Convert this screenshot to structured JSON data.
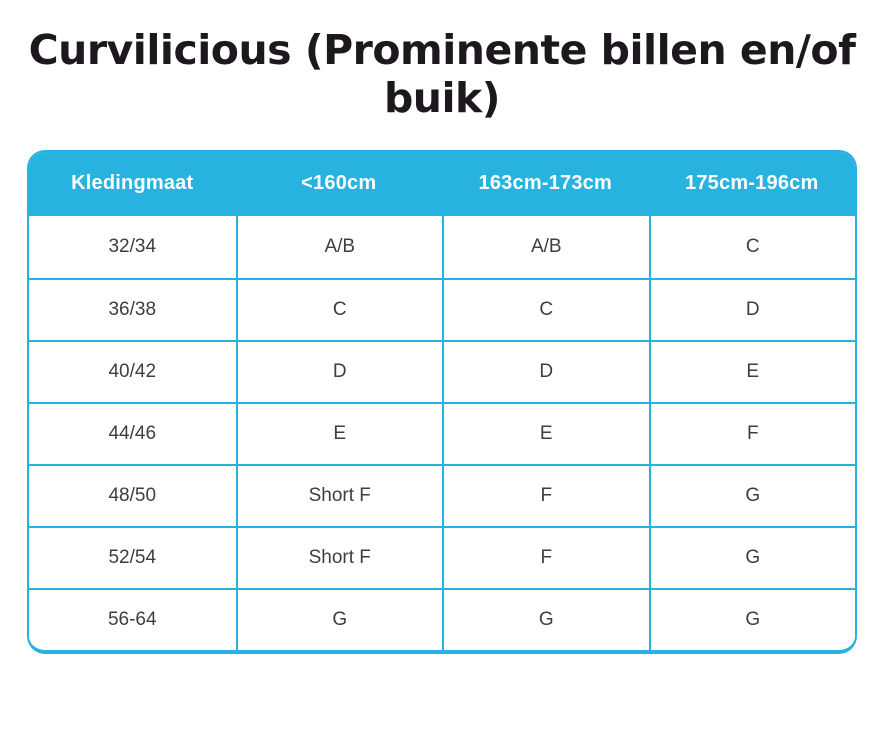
{
  "page": {
    "title": "Curvilicious (Prominente billen en/of buik)",
    "title_lines": [
      "Curvilicious (Prominente billen en/of",
      "buik)"
    ]
  },
  "colors": {
    "accent": "#28b2df",
    "title_text": "#1c181d",
    "cell_text": "#3e3e3e",
    "header_text": "#ffffff",
    "background": "#ffffff"
  },
  "table": {
    "columns": [
      "Kledingmaat",
      "<160cm",
      "163cm-173cm",
      "175cm-196cm"
    ],
    "rows": [
      [
        "32/34",
        "A/B",
        "A/B",
        "C"
      ],
      [
        "36/38",
        "C",
        "C",
        "D"
      ],
      [
        "40/42",
        "D",
        "D",
        "E"
      ],
      [
        "44/46",
        "E",
        "E",
        "F"
      ],
      [
        "48/50",
        "Short F",
        "F",
        "G"
      ],
      [
        "52/54",
        "Short F",
        "F",
        "G"
      ],
      [
        "56-64",
        "G",
        "G",
        "G"
      ]
    ]
  }
}
